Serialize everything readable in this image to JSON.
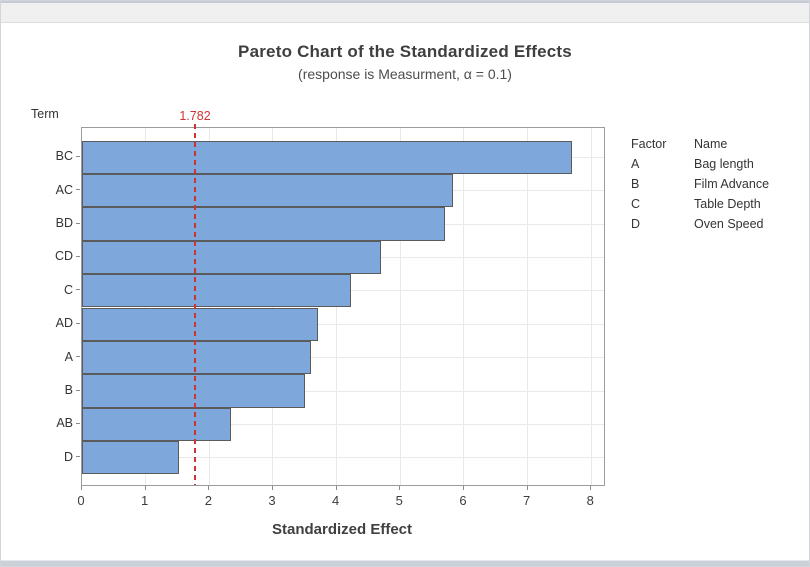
{
  "window": {
    "kind": "minitab-graph-window"
  },
  "chart_data": {
    "type": "bar",
    "orientation": "horizontal",
    "title": "Pareto Chart of the Standardized Effects",
    "subtitle": "(response is Measurment, α = 0.1)",
    "xlabel": "Standardized Effect",
    "ylabel": "Term",
    "categories": [
      "BC",
      "AC",
      "BD",
      "CD",
      "C",
      "AD",
      "A",
      "B",
      "AB",
      "D"
    ],
    "values": [
      7.7,
      5.83,
      5.7,
      4.7,
      4.22,
      3.71,
      3.6,
      3.51,
      2.34,
      1.52
    ],
    "reference_line": 1.782,
    "reference_label": "1.782",
    "xlim": [
      0,
      8.2
    ],
    "xticks": [
      0,
      1,
      2,
      3,
      4,
      5,
      6,
      7,
      8
    ],
    "grid": "both",
    "legend": {
      "position": "right",
      "col_headers": [
        "Factor",
        "Name"
      ],
      "rows": [
        [
          "A",
          "Bag length"
        ],
        [
          "B",
          "Film Advance"
        ],
        [
          "C",
          "Table Depth"
        ],
        [
          "D",
          "Oven Speed"
        ]
      ]
    },
    "colors": {
      "bar_fill": "#7EA8DB",
      "bar_border": "#5B5B5B",
      "reference": "#CE3434",
      "gridline": "#E9E9E9",
      "axis": "#8A8A8A",
      "plot_border": "#9C9C9C",
      "title_text": "#3F3F3F"
    }
  }
}
